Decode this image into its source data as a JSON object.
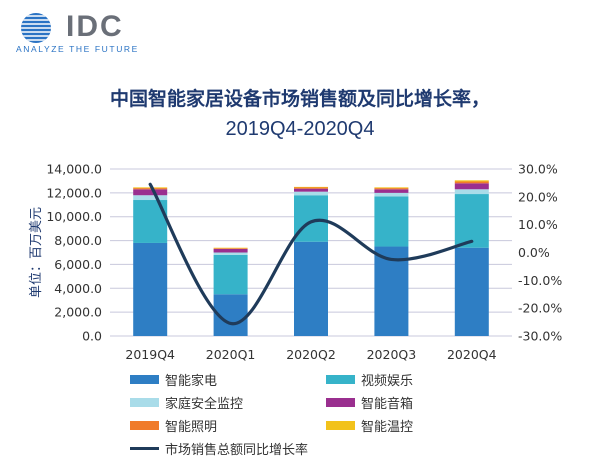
{
  "logo": {
    "text": "IDC",
    "tagline": "ANALYZE THE FUTURE"
  },
  "title_line1": "中国智能家居设备市场销售额及同比增长率，",
  "title_line2": "2019Q4-2020Q4",
  "chart_data": {
    "type": "bar",
    "stacked": true,
    "categories": [
      "2019Q4",
      "2020Q1",
      "2020Q2",
      "2020Q3",
      "2020Q4"
    ],
    "ylabel": "单位：百万美元",
    "ylim": [
      0,
      14000
    ],
    "yticks": [
      "0.0",
      "2,000.0",
      "4,000.0",
      "6,000.0",
      "8,000.0",
      "10,000.0",
      "12,000.0",
      "14,000.0"
    ],
    "y2lim": [
      -30,
      30
    ],
    "y2ticks": [
      "-30.0%",
      "-20.0%",
      "-10.0%",
      "0.0%",
      "10.0%",
      "20.0%",
      "30.0%"
    ],
    "grid": true,
    "series": [
      {
        "name": "智能家电",
        "color": "#2e7ec4",
        "values": [
          7800,
          3500,
          7900,
          7500,
          7400
        ]
      },
      {
        "name": "视频娱乐",
        "color": "#36b3c9",
        "values": [
          3600,
          3300,
          3900,
          4200,
          4500
        ]
      },
      {
        "name": "家庭安全监控",
        "color": "#a9dce9",
        "values": [
          400,
          200,
          300,
          300,
          400
        ]
      },
      {
        "name": "智能音箱",
        "color": "#9a2f8f",
        "values": [
          500,
          300,
          250,
          300,
          500
        ]
      },
      {
        "name": "智能照明",
        "color": "#f07b2a",
        "values": [
          100,
          60,
          100,
          100,
          150
        ]
      },
      {
        "name": "智能温控",
        "color": "#f2c21b",
        "values": [
          60,
          40,
          50,
          60,
          100
        ]
      }
    ],
    "line_series": {
      "name": "市场销售总额同比增长率",
      "color": "#1f3b5a",
      "values": [
        24.5,
        -25.5,
        11.0,
        -2.5,
        4.0
      ]
    }
  }
}
